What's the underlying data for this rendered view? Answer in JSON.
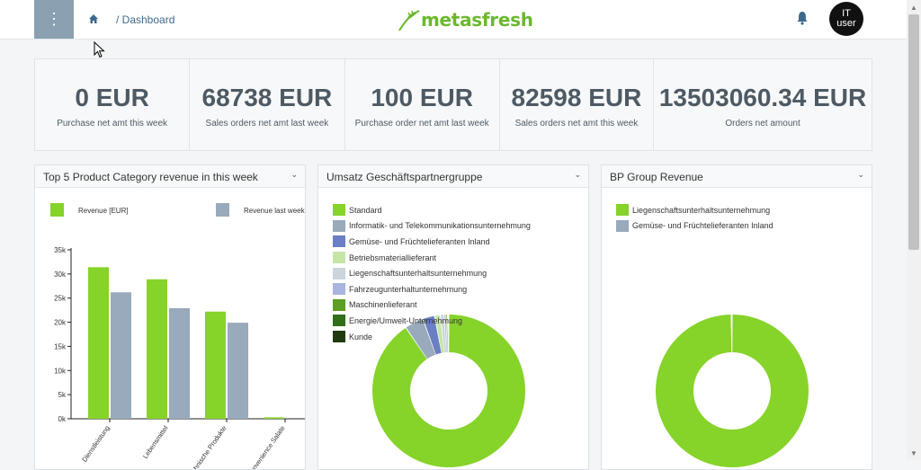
{
  "header": {
    "menu_glyph": "⋮",
    "breadcrumb": "/ Dashboard",
    "logo_text": "metasfresh",
    "avatar_line1": "IT",
    "avatar_line2": "user"
  },
  "kpis": [
    {
      "value": "0 EUR",
      "label": "Purchase net amt this week"
    },
    {
      "value": "68738 EUR",
      "label": "Sales orders net amt last week"
    },
    {
      "value": "100 EUR",
      "label": "Purchase order net amt last week"
    },
    {
      "value": "82598 EUR",
      "label": "Sales orders net amt this week"
    },
    {
      "value": "13503060.34 EUR",
      "label": "Orders net amount"
    }
  ],
  "panels": {
    "bar": {
      "title": "Top 5 Product Category revenue in this week",
      "chevron": "⌄"
    },
    "donut1": {
      "title": "Umsatz Geschäftspartnergruppe",
      "chevron": "⌄"
    },
    "donut2": {
      "title": "BP Group Revenue",
      "chevron": "⌄"
    }
  },
  "colors": {
    "accent_green": "#86d32a",
    "grey_blue": "#98aabb",
    "sidebar_button": "#8ba0b0",
    "kpi_text": "#4e5a63"
  },
  "chart_data": [
    {
      "type": "bar",
      "title": "Top 5 Product Category revenue in this week",
      "categories": [
        "Dienstleistung",
        "Lebensmittel",
        "Technische Produkte",
        "Convenience Salate"
      ],
      "series": [
        {
          "name": "Revenue [EUR]",
          "color": "#86d32a",
          "values": [
            31400,
            28900,
            22200,
            300
          ]
        },
        {
          "name": "Revenue last week",
          "color": "#98aabb",
          "values": [
            26200,
            22900,
            19900,
            0
          ]
        }
      ],
      "ylim": [
        0,
        35000
      ],
      "yticks": [
        "0k",
        "5k",
        "10k",
        "15k",
        "20k",
        "25k",
        "30k",
        "35k"
      ],
      "legend": "top"
    },
    {
      "type": "pie",
      "title": "Umsatz Geschäftspartnergruppe",
      "labels": [
        "Standard",
        "Informatik- und Telekommunikationsunternehmung",
        "Gemüse- und Früchtelieferanten Inland",
        "Betriebsmateriallieferant",
        "Liegenschaftsunterhaltsunternehmung",
        "Fahrzeugunterhaltunternehmung",
        "Maschinenlieferant",
        "Energie/Umwelt-Unternehmung",
        "Kunde"
      ],
      "values": [
        90.5,
        4.0,
        2.5,
        1.2,
        0.8,
        0.4,
        0.3,
        0.2,
        0.1
      ],
      "colors": [
        "#86d32a",
        "#98aabb",
        "#6b7fc4",
        "#c6e6a6",
        "#ccd4dc",
        "#a9b4e0",
        "#5c9f22",
        "#2f6f1a",
        "#1f3b0d"
      ],
      "donut": true,
      "legend": "top-left"
    },
    {
      "type": "pie",
      "title": "BP Group Revenue",
      "labels": [
        "Liegenschaftsunterhaltsunternehmung",
        "Gemüse- und Früchtelieferanten Inland"
      ],
      "values": [
        99.8,
        0.2
      ],
      "colors": [
        "#86d32a",
        "#98aabb"
      ],
      "donut": true,
      "legend": "top-left"
    }
  ]
}
